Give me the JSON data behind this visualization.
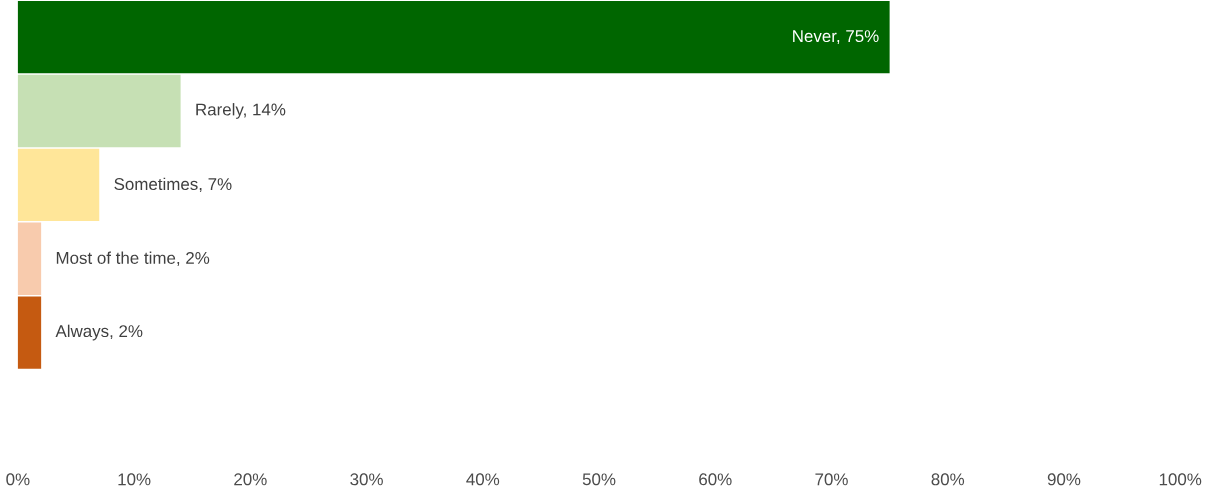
{
  "chart_data": {
    "type": "bar",
    "orientation": "horizontal",
    "categories": [
      null,
      null,
      null,
      null,
      null
    ],
    "values": [
      75,
      14,
      7,
      2,
      2
    ],
    "colors": [
      "#006600",
      "#c6e0b4",
      "#ffe699",
      "#f8cbad",
      "#c55a11"
    ],
    "value_labels": [
      "Never, 75%",
      "Rarely, 14%",
      "Sometimes, 7%",
      "Most of the time, 2%",
      "Always, 2%"
    ],
    "xlim": [
      0,
      100
    ],
    "xticks": [
      {
        "value": 0,
        "label": "0%"
      },
      {
        "value": 10,
        "label": "10%"
      },
      {
        "value": 20,
        "label": "20%"
      },
      {
        "value": 30,
        "label": "30%"
      },
      {
        "value": 40,
        "label": "40%"
      },
      {
        "value": 50,
        "label": "50%"
      },
      {
        "value": 60,
        "label": "60%"
      },
      {
        "value": 70,
        "label": "70%"
      },
      {
        "value": 80,
        "label": "80%"
      },
      {
        "value": 90,
        "label": "90%"
      },
      {
        "value": 100,
        "label": "100%"
      }
    ],
    "grid": false
  }
}
